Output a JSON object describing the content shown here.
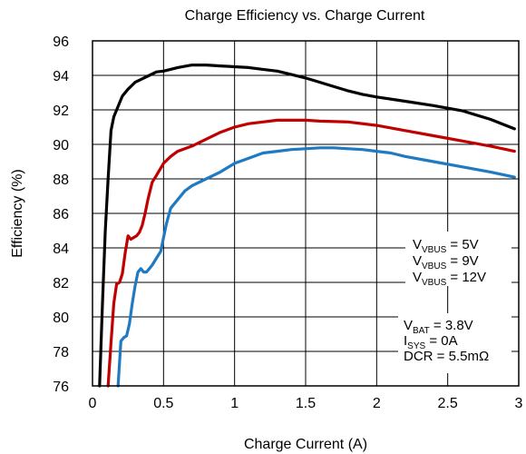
{
  "chart_data": {
    "type": "line",
    "title": "Charge Efficiency vs. Charge Current",
    "xlabel": "Charge Current (A)",
    "ylabel": "Efficiency (%)",
    "xlim": [
      0,
      3
    ],
    "ylim": [
      76,
      96
    ],
    "xticks": [
      0,
      0.5,
      1,
      1.5,
      2,
      2.5,
      3
    ],
    "xtick_labels": [
      "0",
      "0.5",
      "1",
      "1.5",
      "2",
      "2.5",
      "3"
    ],
    "yticks": [
      76,
      78,
      80,
      82,
      84,
      86,
      88,
      90,
      92,
      94,
      96
    ],
    "ytick_labels": [
      "76",
      "78",
      "80",
      "82",
      "84",
      "86",
      "88",
      "90",
      "92",
      "94",
      "96"
    ],
    "grid": true,
    "legend_position": "right",
    "series": [
      {
        "name": "VVBUS = 5V",
        "legend": {
          "main": "V",
          "sub": "VBUS",
          "suffix": " = 5V"
        },
        "color": "#000000",
        "x": [
          0.05,
          0.07,
          0.09,
          0.11,
          0.13,
          0.15,
          0.18,
          0.21,
          0.25,
          0.3,
          0.35,
          0.4,
          0.45,
          0.5,
          0.6,
          0.7,
          0.8,
          0.9,
          1.0,
          1.1,
          1.2,
          1.3,
          1.4,
          1.5,
          1.6,
          1.7,
          1.8,
          1.9,
          2.0,
          2.2,
          2.4,
          2.6,
          2.8,
          2.97
        ],
        "y": [
          76,
          80.8,
          85.0,
          88.0,
          90.8,
          91.6,
          92.2,
          92.8,
          93.2,
          93.6,
          93.8,
          94.0,
          94.2,
          94.25,
          94.45,
          94.6,
          94.6,
          94.55,
          94.5,
          94.45,
          94.35,
          94.25,
          94.05,
          93.85,
          93.6,
          93.35,
          93.1,
          92.9,
          92.75,
          92.5,
          92.25,
          91.95,
          91.45,
          90.9
        ]
      },
      {
        "name": "VVBUS = 9V",
        "legend": {
          "main": "V",
          "sub": "VBUS",
          "suffix": " = 9V"
        },
        "color": "#c00000",
        "x": [
          0.11,
          0.13,
          0.15,
          0.17,
          0.19,
          0.21,
          0.23,
          0.25,
          0.27,
          0.29,
          0.31,
          0.33,
          0.35,
          0.37,
          0.39,
          0.42,
          0.45,
          0.5,
          0.55,
          0.6,
          0.7,
          0.8,
          0.9,
          1.0,
          1.1,
          1.2,
          1.3,
          1.4,
          1.5,
          1.6,
          1.8,
          2.0,
          2.2,
          2.4,
          2.6,
          2.8,
          2.97
        ],
        "y": [
          76,
          78.5,
          80.8,
          81.9,
          82.0,
          82.5,
          83.7,
          84.7,
          84.5,
          84.6,
          84.7,
          84.9,
          85.3,
          86.0,
          86.8,
          87.8,
          88.2,
          88.9,
          89.3,
          89.6,
          89.9,
          90.3,
          90.7,
          91.0,
          91.2,
          91.3,
          91.4,
          91.4,
          91.4,
          91.35,
          91.3,
          91.1,
          90.8,
          90.5,
          90.2,
          89.9,
          89.6
        ]
      },
      {
        "name": "VVBUS = 12V",
        "legend": {
          "main": "V",
          "sub": "VBUS",
          "suffix": " = 12V"
        },
        "color": "#1f7ac2",
        "x": [
          0.18,
          0.2,
          0.22,
          0.24,
          0.26,
          0.28,
          0.3,
          0.32,
          0.34,
          0.36,
          0.38,
          0.4,
          0.42,
          0.45,
          0.48,
          0.52,
          0.55,
          0.6,
          0.65,
          0.7,
          0.8,
          0.9,
          1.0,
          1.1,
          1.2,
          1.3,
          1.4,
          1.5,
          1.6,
          1.7,
          1.8,
          1.9,
          2.0,
          2.1,
          2.2,
          2.4,
          2.6,
          2.8,
          2.97
        ],
        "y": [
          76,
          78.6,
          78.8,
          78.9,
          79.6,
          80.8,
          81.8,
          82.6,
          82.8,
          82.6,
          82.6,
          82.8,
          83.0,
          83.4,
          83.8,
          85.4,
          86.3,
          86.8,
          87.3,
          87.6,
          88.0,
          88.4,
          88.9,
          89.2,
          89.5,
          89.6,
          89.7,
          89.75,
          89.8,
          89.8,
          89.75,
          89.7,
          89.6,
          89.5,
          89.3,
          89.0,
          88.7,
          88.4,
          88.1
        ]
      }
    ],
    "annotations": [
      {
        "main": "V",
        "sub": "BAT",
        "suffix": " = 3.8V"
      },
      {
        "main": "I",
        "sub": "SYS",
        "suffix": " = 0A"
      },
      {
        "main": "DCR = 5.5mΩ",
        "sub": "",
        "suffix": ""
      }
    ]
  }
}
